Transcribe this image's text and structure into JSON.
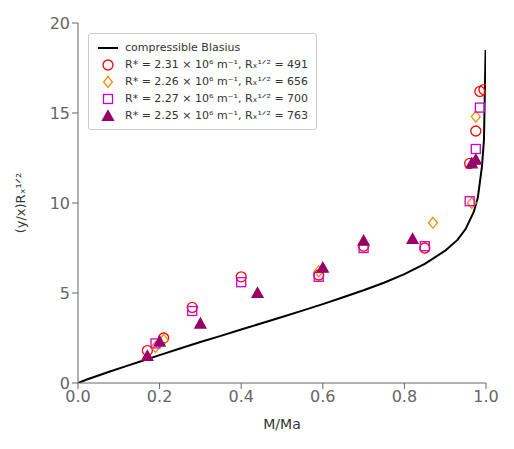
{
  "chart_data": {
    "type": "scatter",
    "xlabel": "M/Ma",
    "ylabel": "(y/x)Rₓ¹ᐟ²",
    "xlim": [
      0,
      1.0
    ],
    "ylim": [
      0,
      20
    ],
    "xticks": [
      {
        "value": 0,
        "label": "0.0"
      },
      0.2,
      0.4,
      0.6,
      0.8,
      {
        "value": 1.0,
        "label": "1.0"
      }
    ],
    "yticks": [
      0,
      5,
      10,
      15,
      20
    ],
    "grid": false,
    "legend": "upper left",
    "series": [
      {
        "name": "compressible Blasius",
        "type": "line",
        "line_style": "solid",
        "color": "#000000",
        "x": [
          0.0,
          0.02,
          0.05,
          0.08,
          0.12,
          0.16,
          0.2,
          0.25,
          0.3,
          0.35,
          0.4,
          0.45,
          0.5,
          0.55,
          0.6,
          0.65,
          0.7,
          0.75,
          0.8,
          0.85,
          0.9,
          0.93,
          0.95,
          0.97,
          0.98,
          0.99,
          0.995,
          0.999
        ],
        "values": [
          0.0,
          0.18,
          0.42,
          0.65,
          0.95,
          1.25,
          1.55,
          1.92,
          2.28,
          2.62,
          2.97,
          3.32,
          3.67,
          4.02,
          4.38,
          4.76,
          5.15,
          5.57,
          6.05,
          6.62,
          7.35,
          7.95,
          8.55,
          9.5,
          10.3,
          12.0,
          13.5,
          18.5
        ]
      },
      {
        "name": "R* = 2.31 × 10⁶ m⁻¹, Rₓ¹ᐟ² = 491",
        "type": "scatter",
        "marker": "circle-open",
        "color": "#ff0000",
        "x": [
          0.17,
          0.21,
          0.28,
          0.4,
          0.59,
          0.7,
          0.85,
          0.96,
          0.975,
          0.985,
          0.995
        ],
        "values": [
          1.8,
          2.5,
          4.2,
          5.9,
          6.0,
          7.6,
          7.5,
          12.2,
          14.0,
          16.2,
          16.3
        ]
      },
      {
        "name": "R* = 2.26 × 10⁶ m⁻¹, Rₓ¹ᐟ² = 656",
        "type": "scatter",
        "marker": "diamond-open",
        "color": "#ff8c00",
        "x": [
          0.19,
          0.21,
          0.59,
          0.87,
          0.965,
          0.975
        ],
        "values": [
          2.0,
          2.4,
          6.2,
          8.9,
          10.0,
          14.8
        ]
      },
      {
        "name": "R* = 2.27 × 10⁶ m⁻¹, Rₓ¹ᐟ² = 700",
        "type": "scatter",
        "marker": "square-open",
        "color": "#cc00cc",
        "x": [
          0.19,
          0.28,
          0.4,
          0.59,
          0.7,
          0.85,
          0.96,
          0.975,
          0.985
        ],
        "values": [
          2.2,
          4.0,
          5.6,
          5.9,
          7.5,
          7.6,
          10.1,
          13.0,
          15.3
        ]
      },
      {
        "name": "R* = 2.25 × 10⁶ m⁻¹, Rₓ¹ᐟ² = 763",
        "type": "scatter",
        "marker": "triangle",
        "color": "#990066",
        "x": [
          0.17,
          0.2,
          0.3,
          0.44,
          0.6,
          0.7,
          0.82,
          0.965,
          0.975
        ],
        "values": [
          1.5,
          2.3,
          3.3,
          5.0,
          6.4,
          7.9,
          8.0,
          12.2,
          12.4
        ]
      }
    ]
  }
}
